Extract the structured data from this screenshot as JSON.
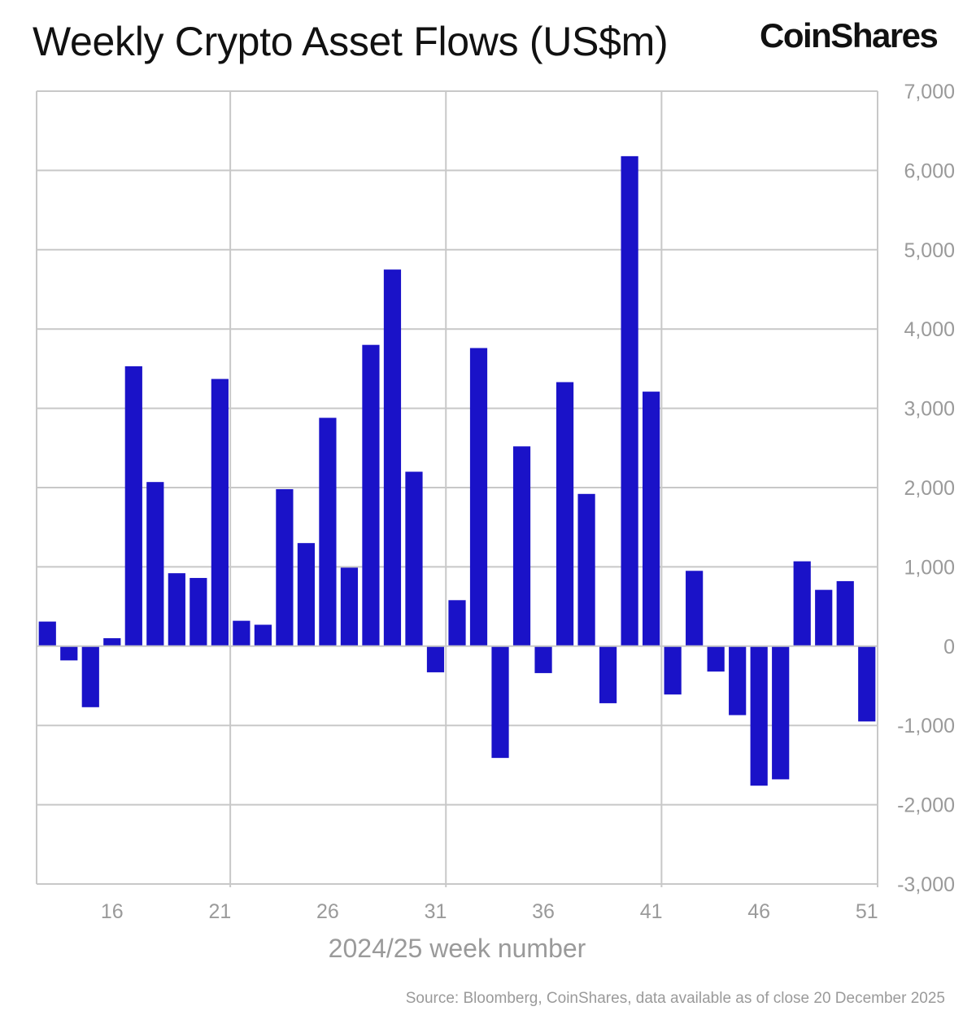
{
  "title": "Weekly Crypto Asset Flows (US$m)",
  "brand": "CoinShares",
  "source": "Source: Bloomberg, CoinShares, data available as of close 20 December 2025",
  "colors": {
    "bar": "#1a12c8",
    "grid": "#c8c8c8",
    "axis_text": "#9a9a9a",
    "title": "#111111"
  },
  "chart_data": {
    "type": "bar",
    "title": "Weekly Crypto Asset Flows (US$m)",
    "xlabel": "2024/25 week number",
    "ylabel": "",
    "ylim": [
      -3000,
      7000
    ],
    "yticks": [
      7000,
      6000,
      5000,
      4000,
      3000,
      2000,
      1000,
      0,
      -1000,
      -2000,
      -3000
    ],
    "ytick_labels": [
      "7,000",
      "6,000",
      "5,000",
      "4,000",
      "3,000",
      "2,000",
      "1,000",
      "0",
      "-1,000",
      "-2,000",
      "-3,000"
    ],
    "xtick_labels": [
      "16",
      "21",
      "26",
      "31",
      "36",
      "41",
      "46",
      "51"
    ],
    "xtick_weeks": [
      16,
      21,
      26,
      31,
      36,
      41,
      46,
      51
    ],
    "grid": true,
    "categories": [
      13,
      14,
      15,
      16,
      17,
      18,
      19,
      20,
      21,
      22,
      23,
      24,
      25,
      26,
      27,
      28,
      29,
      30,
      31,
      32,
      33,
      34,
      35,
      36,
      37,
      38,
      39,
      40,
      41,
      42,
      43,
      44,
      45,
      46,
      47,
      48,
      49,
      50,
      51
    ],
    "values": [
      310,
      -180,
      -770,
      100,
      3530,
      2070,
      920,
      860,
      3370,
      320,
      270,
      1980,
      1300,
      2880,
      990,
      3800,
      4750,
      2200,
      -330,
      580,
      3760,
      -1410,
      2520,
      -340,
      3330,
      1920,
      -720,
      6180,
      3210,
      -610,
      950,
      -320,
      -870,
      -1760,
      -1680,
      1070,
      710,
      820,
      -950
    ]
  }
}
